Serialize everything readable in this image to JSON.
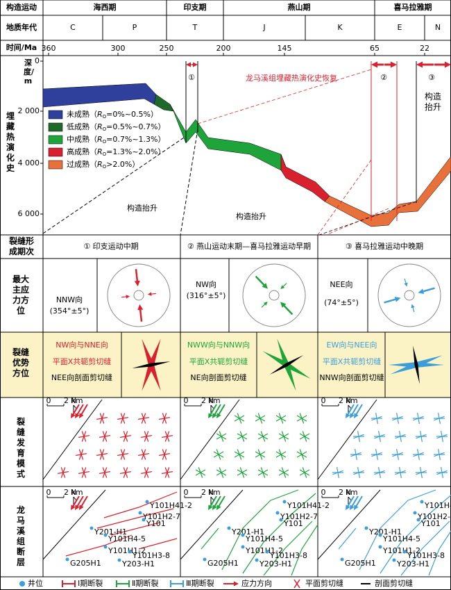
{
  "header": {
    "labels": [
      "构造运动",
      "地质年代",
      "时间/Ma"
    ],
    "movements": [
      "海西期",
      "印支期",
      "燕山期",
      "喜马拉雅期"
    ],
    "periods": [
      "C",
      "P",
      "T",
      "J",
      "K",
      "E",
      "N"
    ],
    "time_ticks": [
      "360",
      "300",
      "250",
      "200",
      "145",
      "65",
      "22"
    ]
  },
  "burial": {
    "label": "埋藏热演化史",
    "depth_label": "深度/m",
    "depth_ticks": [
      "0",
      "2 000",
      "4 000",
      "6 000"
    ],
    "title": "龙马溪组埋藏热演化史恢复",
    "ro": "R",
    "ro_sub": "O",
    "legend": [
      {
        "name": "未成熟（",
        "range": "=0%~0.5%）"
      },
      {
        "name": "低成熟（",
        "range": "=0.5%~0.7%）"
      },
      {
        "name": "中成熟（",
        "range": "=0.7%~1.3%）"
      },
      {
        "name": "高成熟（",
        "range": "=1.3%~2.0%）"
      },
      {
        "name": "过成熟（",
        "range": ">2.0%）"
      }
    ],
    "stages": [
      "①",
      "②",
      "③"
    ],
    "uplift": [
      "构造抬升",
      "构造抬升",
      "构造抬升"
    ]
  },
  "stages": {
    "label": "裂缝形成期次",
    "items": [
      "① 印支运动中期",
      "② 燕山运动末期—喜马拉雅运动早期",
      "③ 喜马拉雅运动中晚期"
    ]
  },
  "stress": {
    "label": "最大主应力方位",
    "items": [
      {
        "direction": "NNW向",
        "angle": "(354°±5°)"
      },
      {
        "direction": "NW向",
        "angle": "(316°±5°)"
      },
      {
        "direction": "NEE向",
        "angle": "(74°±5°)"
      }
    ]
  },
  "orientation": {
    "label": "裂缝优势方位",
    "items": [
      {
        "lines": [
          "NW向与NNE向",
          "平面X共轭剪切缝",
          "NEE向剖面剪切缝"
        ]
      },
      {
        "lines": [
          "NWW向与NNW向",
          "平面X共轭剪切缝",
          "NE向剖面剪切缝"
        ]
      },
      {
        "lines": [
          "EW向与NEE向",
          "平面X共轭剪切缝",
          "NNW向剖面剪切缝"
        ]
      }
    ]
  },
  "pattern": {
    "label": "裂缝发育模式",
    "scale_start": "0",
    "scale": "2 km",
    "north": "N"
  },
  "faults": {
    "label": "龙马溪组断层",
    "wells": [
      "Y101H41-2",
      "Y101H2-7",
      "Y101",
      "Y201-H1",
      "Y101H4-5",
      "Y101H1-2",
      "Y101H3-8",
      "G205H1",
      "Y203-H1"
    ]
  },
  "legend": [
    "井位",
    "Ⅰ期断裂",
    "Ⅱ期断裂",
    "Ⅲ期断裂",
    "应力方向",
    "平面剪切缝",
    "剖面剪切缝"
  ]
}
